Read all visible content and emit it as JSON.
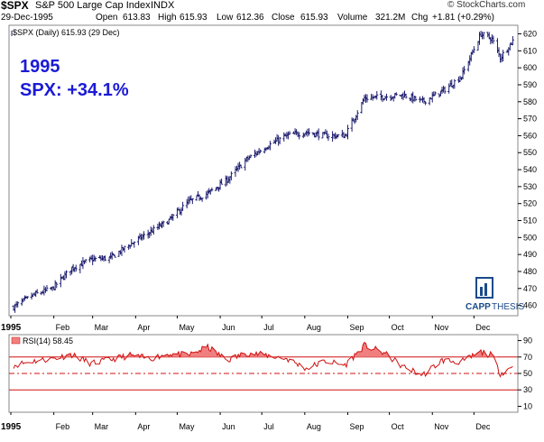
{
  "header": {
    "symbol": "$SPX",
    "name": "S&P 500 Large Cap Index",
    "exchange": "INDX",
    "watermark": "© StockCharts.com",
    "date": "29-Dec-1995",
    "open_label": "Open",
    "open": "613.83",
    "high_label": "High",
    "high": "615.93",
    "low_label": "Low",
    "low": "612.36",
    "close_label": "Close",
    "close": "615.93",
    "volume_label": "Volume",
    "volume": "321.2M",
    "chg_label": "Chg",
    "chg": "+1.81 (+0.29%)"
  },
  "price_legend": "$SPX (Daily) 615.93 (29 Dec)",
  "annotation": {
    "line1": "1995",
    "line2": "SPX: +34.1%"
  },
  "logo": {
    "capp": "CAPP",
    "thesis": "THESIS"
  },
  "rsi_legend": "RSI(14) 58.45",
  "x_year_label": "1995",
  "colors": {
    "price_bars": "#1c1c6e",
    "annotation": "#1a1ad6",
    "rsi": "#d01010",
    "rsi_fill": "#f08080",
    "logo": "#1a4a8a"
  },
  "chart_data": [
    {
      "type": "ohlc",
      "title": "$SPX (Daily) 615.93 (29 Dec)",
      "x_ticks": [
        "1995",
        "Feb",
        "Mar",
        "Apr",
        "May",
        "Jun",
        "Jul",
        "Aug",
        "Sep",
        "Oct",
        "Nov",
        "Dec"
      ],
      "y_ticks": [
        460,
        470,
        480,
        490,
        500,
        510,
        520,
        530,
        540,
        550,
        560,
        570,
        580,
        590,
        600,
        610,
        620
      ],
      "ylim": [
        455,
        624
      ],
      "y_axis": "right",
      "grid": false,
      "x": [
        "1995-01-03",
        "1995-01-17",
        "1995-01-31",
        "1995-02-14",
        "1995-02-28",
        "1995-03-14",
        "1995-03-28",
        "1995-04-11",
        "1995-04-25",
        "1995-05-09",
        "1995-05-23",
        "1995-06-06",
        "1995-06-20",
        "1995-07-05",
        "1995-07-19",
        "1995-08-02",
        "1995-08-16",
        "1995-08-30",
        "1995-09-13",
        "1995-09-27",
        "1995-10-11",
        "1995-10-25",
        "1995-11-08",
        "1995-11-22",
        "1995-12-06",
        "1995-12-14",
        "1995-12-20",
        "1995-12-29"
      ],
      "close": [
        459,
        466,
        470,
        482,
        487,
        488,
        496,
        503,
        510,
        521,
        526,
        534,
        546,
        554,
        560,
        562,
        560,
        560,
        582,
        583,
        584,
        580,
        586,
        595,
        620,
        617,
        606,
        615.93
      ]
    },
    {
      "type": "line",
      "title": "RSI(14) 58.45",
      "y_ticks": [
        10,
        30,
        50,
        70,
        90
      ],
      "ylim": [
        5,
        95
      ],
      "reference_lines": [
        30,
        50,
        70
      ],
      "fill_above": 70,
      "x": [
        "1995-01-03",
        "1995-01-17",
        "1995-01-31",
        "1995-02-14",
        "1995-02-28",
        "1995-03-14",
        "1995-03-28",
        "1995-04-11",
        "1995-04-25",
        "1995-05-09",
        "1995-05-23",
        "1995-06-06",
        "1995-06-20",
        "1995-07-05",
        "1995-07-19",
        "1995-08-02",
        "1995-08-16",
        "1995-08-30",
        "1995-09-13",
        "1995-09-27",
        "1995-10-11",
        "1995-10-25",
        "1995-11-08",
        "1995-11-22",
        "1995-12-06",
        "1995-12-14",
        "1995-12-20",
        "1995-12-29"
      ],
      "values": [
        60,
        65,
        68,
        73,
        62,
        67,
        72,
        68,
        74,
        72,
        82,
        66,
        75,
        72,
        68,
        56,
        65,
        60,
        84,
        75,
        58,
        48,
        66,
        64,
        76,
        72,
        50,
        58.45
      ]
    }
  ]
}
